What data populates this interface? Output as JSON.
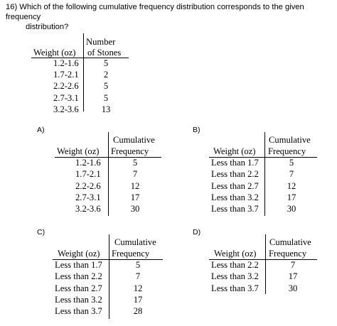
{
  "question": {
    "line1": "16) Which of the following cumulative frequency distribution corresponds to the given frequency",
    "line2": "distribution?"
  },
  "given": {
    "col1_header": "Weight (oz)",
    "col2_header_line1": "Number",
    "col2_header_line2": "of Stones",
    "rows": [
      {
        "weight": "1.2-1.6",
        "value": "5"
      },
      {
        "weight": "1.7-2.1",
        "value": "2"
      },
      {
        "weight": "2.2-2.6",
        "value": "5"
      },
      {
        "weight": "2.7-3.1",
        "value": "5"
      },
      {
        "weight": "3.2-3.6",
        "value": "13"
      }
    ]
  },
  "options": {
    "A": {
      "label": "A)",
      "col1_header": "Weight (oz)",
      "col2_header_line1": "Cumulative",
      "col2_header_line2": "Frequency",
      "rows": [
        {
          "weight": "1.2-1.6",
          "value": "5"
        },
        {
          "weight": "1.7-2.1",
          "value": "7"
        },
        {
          "weight": "2.2-2.6",
          "value": "12"
        },
        {
          "weight": "2.7-3.1",
          "value": "17"
        },
        {
          "weight": "3.2-3.6",
          "value": "30"
        }
      ]
    },
    "B": {
      "label": "B)",
      "col1_header": "Weight (oz)",
      "col2_header_line1": "Cumulative",
      "col2_header_line2": "Frequency",
      "rows": [
        {
          "weight": "Less than 1.7",
          "value": "5"
        },
        {
          "weight": "Less than 2.2",
          "value": "7"
        },
        {
          "weight": "Less than 2.7",
          "value": "12"
        },
        {
          "weight": "Less than 3.2",
          "value": "17"
        },
        {
          "weight": "Less than 3.7",
          "value": "30"
        }
      ]
    },
    "C": {
      "label": "C)",
      "col1_header": "Weight (oz)",
      "col2_header_line1": "Cumulative",
      "col2_header_line2": "Frequency",
      "rows": [
        {
          "weight": "Less than 1.7",
          "value": "5"
        },
        {
          "weight": "Less than 2.2",
          "value": "7"
        },
        {
          "weight": "Less than 2.7",
          "value": "12"
        },
        {
          "weight": "Less than 3.2",
          "value": "17"
        },
        {
          "weight": "Less than 3.7",
          "value": "28"
        }
      ]
    },
    "D": {
      "label": "D)",
      "col1_header": "Weight (oz)",
      "col2_header_line1": "Cumulative",
      "col2_header_line2": "Frequency",
      "rows": [
        {
          "weight": "Less than 2.2",
          "value": "7"
        },
        {
          "weight": "Less than 3.2",
          "value": "17"
        },
        {
          "weight": "Less than 3.7",
          "value": "30"
        }
      ]
    }
  }
}
